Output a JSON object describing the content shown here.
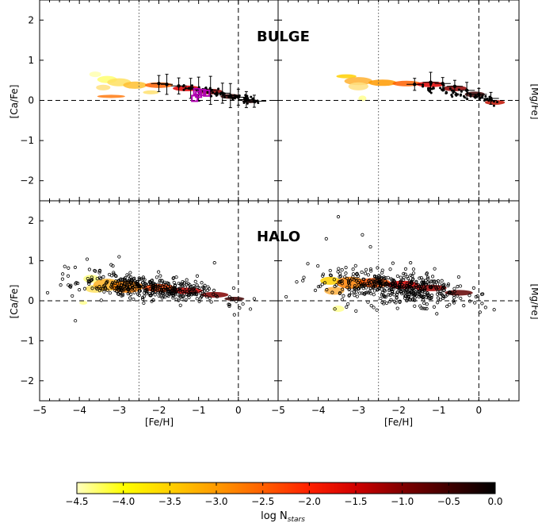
{
  "chart_data": {
    "type": "scatter",
    "panel_labels": {
      "top": "BULGE",
      "bottom": "HALO"
    },
    "axes": {
      "xlabel": "[Fe/H]",
      "ylabel_left": "[Ca/Fe]",
      "ylabel_right": "[Mg/Fe]",
      "xlim": [
        -5,
        1
      ],
      "ylim": [
        -2.5,
        2.5
      ],
      "xticks": [
        "-5",
        "-4",
        "-3",
        "-2",
        "-1",
        "0"
      ],
      "yticks": [
        "-2",
        "-1",
        "0",
        "1",
        "2"
      ],
      "hline_y": 0,
      "vline_dashed_x": 0,
      "vline_dotted_x": -2.5
    },
    "colorbar": {
      "label": "log N",
      "label_sub": "stars",
      "ticks": [
        "-4.5",
        "-4.0",
        "-3.5",
        "-3.0",
        "-2.5",
        "-2.0",
        "-1.5",
        "-1.0",
        "-0.5",
        "0.0"
      ],
      "range": [
        -4.5,
        0.0
      ],
      "colors": [
        "#ffffc0",
        "#ffff00",
        "#ffd000",
        "#ff9a00",
        "#ff6000",
        "#ff2000",
        "#d00000",
        "#800000",
        "#400000",
        "#000000"
      ]
    },
    "panels": [
      {
        "id": "bulge-ca",
        "density": [
          [
            -3.6,
            0.65,
            0.15,
            0.07,
            "#ffffb0"
          ],
          [
            -3.3,
            0.52,
            0.25,
            0.09,
            "#ffff70"
          ],
          [
            -3.0,
            0.45,
            0.3,
            0.1,
            "#ffe060"
          ],
          [
            -3.4,
            0.32,
            0.18,
            0.07,
            "#ffe080"
          ],
          [
            -3.2,
            0.1,
            0.35,
            0.04,
            "#ff7a10"
          ],
          [
            -2.6,
            0.38,
            0.3,
            0.09,
            "#ffc030"
          ],
          [
            -2.0,
            0.38,
            0.35,
            0.07,
            "#ff6000"
          ],
          [
            -1.3,
            0.3,
            0.35,
            0.07,
            "#e00000"
          ],
          [
            -0.7,
            0.22,
            0.3,
            0.07,
            "#900000"
          ],
          [
            -0.2,
            0.1,
            0.25,
            0.06,
            "#400000"
          ],
          [
            0.3,
            -0.02,
            0.2,
            0.05,
            "#200000"
          ],
          [
            -2.2,
            0.2,
            0.2,
            0.05,
            "#ffe070"
          ]
        ],
        "errorbars": [
          [
            -2.0,
            0.42,
            0.2,
            0.2
          ],
          [
            -1.8,
            0.4,
            0.15,
            0.25
          ],
          [
            -1.5,
            0.36,
            0.2,
            0.2
          ],
          [
            -1.2,
            0.3,
            0.15,
            0.25
          ],
          [
            -1.0,
            0.28,
            0.2,
            0.3
          ],
          [
            -0.7,
            0.25,
            0.2,
            0.35
          ],
          [
            -0.4,
            0.18,
            0.2,
            0.25
          ],
          [
            -0.2,
            0.12,
            0.2,
            0.3
          ],
          [
            0.0,
            0.08,
            0.2,
            0.2
          ],
          [
            0.2,
            0.02,
            0.2,
            0.2
          ],
          [
            0.4,
            -0.02,
            0.3,
            0.15
          ]
        ],
        "squares": [
          [
            -1.1,
            0.05
          ],
          [
            -1.0,
            0.15
          ],
          [
            -0.9,
            0.2
          ],
          [
            -0.8,
            0.18
          ],
          [
            -1.05,
            0.22
          ]
        ],
        "points": []
      },
      {
        "id": "bulge-mg",
        "density": [
          [
            -3.3,
            0.6,
            0.25,
            0.05,
            "#ffd000"
          ],
          [
            -3.0,
            0.48,
            0.35,
            0.1,
            "#ffb030"
          ],
          [
            -2.4,
            0.44,
            0.35,
            0.08,
            "#ff9a00"
          ],
          [
            -3.0,
            0.35,
            0.25,
            0.1,
            "#ffe080"
          ],
          [
            -2.9,
            0.05,
            0.1,
            0.07,
            "#ffff90"
          ],
          [
            -1.8,
            0.42,
            0.35,
            0.07,
            "#ff6000"
          ],
          [
            -1.2,
            0.4,
            0.35,
            0.07,
            "#e00000"
          ],
          [
            -0.6,
            0.3,
            0.3,
            0.07,
            "#900000"
          ],
          [
            -0.1,
            0.15,
            0.25,
            0.07,
            "#400000"
          ],
          [
            0.4,
            -0.05,
            0.25,
            0.06,
            "#c01000"
          ]
        ],
        "errorbars": [
          [
            -1.6,
            0.4,
            0.2,
            0.15
          ],
          [
            -1.2,
            0.45,
            0.2,
            0.25
          ],
          [
            -0.9,
            0.42,
            0.2,
            0.15
          ],
          [
            -0.6,
            0.35,
            0.2,
            0.15
          ],
          [
            -0.3,
            0.25,
            0.2,
            0.2
          ],
          [
            0.0,
            0.15,
            0.2,
            0.15
          ],
          [
            0.3,
            0.05,
            0.2,
            0.15
          ]
        ],
        "squares": [],
        "points": []
      },
      {
        "id": "halo-ca",
        "density": [
          [
            -3.7,
            0.55,
            0.2,
            0.1,
            "#ffff80"
          ],
          [
            -3.6,
            0.3,
            0.25,
            0.1,
            "#ffe060"
          ],
          [
            -3.3,
            0.4,
            0.35,
            0.15,
            "#ffb020"
          ],
          [
            -2.8,
            0.35,
            0.4,
            0.15,
            "#ff8000"
          ],
          [
            -2.0,
            0.32,
            0.4,
            0.1,
            "#ff4000"
          ],
          [
            -1.3,
            0.25,
            0.4,
            0.08,
            "#d00000"
          ],
          [
            -0.6,
            0.15,
            0.35,
            0.07,
            "#800000"
          ],
          [
            -0.1,
            0.05,
            0.25,
            0.05,
            "#400000"
          ],
          [
            -3.9,
            -0.05,
            0.1,
            0.05,
            "#ffff90"
          ]
        ],
        "errorbars": [],
        "squares": [],
        "points": []
      },
      {
        "id": "halo-mg",
        "density": [
          [
            -3.7,
            0.5,
            0.25,
            0.1,
            "#ffd000"
          ],
          [
            -3.6,
            0.25,
            0.25,
            0.1,
            "#ffb040"
          ],
          [
            -3.2,
            0.45,
            0.35,
            0.15,
            "#ff8000"
          ],
          [
            -2.6,
            0.45,
            0.4,
            0.12,
            "#ff5000"
          ],
          [
            -1.9,
            0.4,
            0.4,
            0.1,
            "#e00000"
          ],
          [
            -1.2,
            0.32,
            0.4,
            0.08,
            "#a00000"
          ],
          [
            -0.5,
            0.2,
            0.35,
            0.07,
            "#600000"
          ],
          [
            -3.5,
            -0.2,
            0.15,
            0.08,
            "#ffff90"
          ]
        ],
        "errorbars": [],
        "squares": [],
        "points": []
      }
    ],
    "scatter_gen": {
      "halo_ca": {
        "n": 420,
        "seed": 11,
        "center": [
          -2.2,
          0.3
        ],
        "spread": [
          0.9,
          0.15
        ]
      },
      "halo_mg": {
        "n": 480,
        "seed": 23,
        "center": [
          -2.1,
          0.35
        ],
        "spread": [
          0.9,
          0.2
        ]
      }
    }
  }
}
